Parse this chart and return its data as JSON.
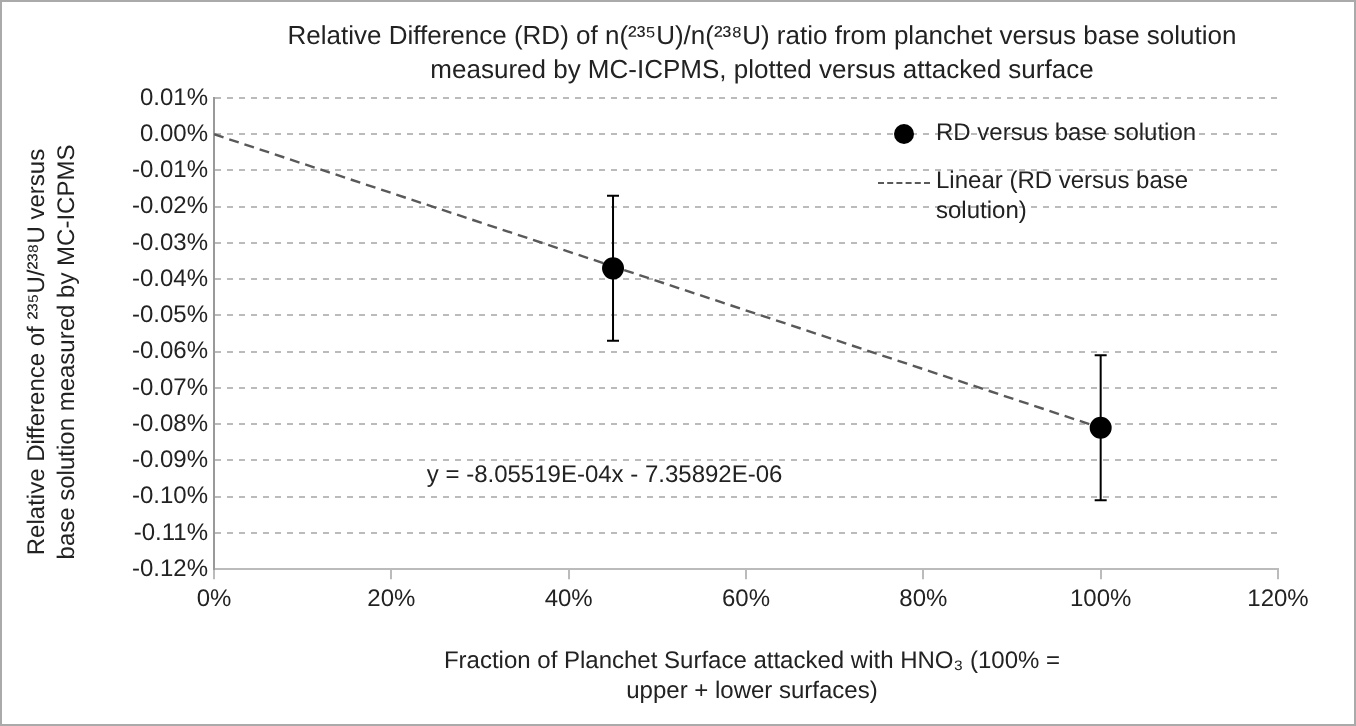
{
  "chart_data": {
    "type": "scatter",
    "title": "Relative Difference (RD) of n(²³⁵U)/n(²³⁸U) ratio from planchet versus base solution measured by MC-ICPMS, plotted versus attacked surface",
    "xlabel": "Fraction  of Planchet Surface attacked with HNO₃ (100% = upper + lower surfaces)",
    "ylabel": "Relative Difference of ²³⁵U/²³⁸U versus base solution measured by MC-ICPMS",
    "xlim": [
      0,
      120
    ],
    "xticks": [
      {
        "value": 0,
        "label": "0%"
      },
      {
        "value": 20,
        "label": "20%"
      },
      {
        "value": 40,
        "label": "40%"
      },
      {
        "value": 60,
        "label": "60%"
      },
      {
        "value": 80,
        "label": "80%"
      },
      {
        "value": 100,
        "label": "100%"
      },
      {
        "value": 120,
        "label": "120%"
      }
    ],
    "ylim": [
      -0.12,
      0.01
    ],
    "yticks": [
      {
        "value": 0.01,
        "label": "0.01%"
      },
      {
        "value": 0,
        "label": "0.00%"
      },
      {
        "value": -0.01,
        "label": "-0.01%"
      },
      {
        "value": -0.02,
        "label": "-0.02%"
      },
      {
        "value": -0.03,
        "label": "-0.03%"
      },
      {
        "value": -0.04,
        "label": "-0.04%"
      },
      {
        "value": -0.05,
        "label": "-0.05%"
      },
      {
        "value": -0.06,
        "label": "-0.06%"
      },
      {
        "value": -0.07,
        "label": "-0.07%"
      },
      {
        "value": -0.08,
        "label": "-0.08%"
      },
      {
        "value": -0.09,
        "label": "-0.09%"
      },
      {
        "value": -0.1,
        "label": "-0.10%"
      },
      {
        "value": -0.11,
        "label": "-0.11%"
      },
      {
        "value": -0.12,
        "label": "-0.12%"
      }
    ],
    "grid": "y",
    "legend": "top right",
    "annotations": [
      "y = -8.05519E-04x - 7.35892E-06"
    ],
    "series": [
      {
        "name": "RD versus base solution",
        "color": "#000000",
        "marker": "circle",
        "x": [
          45,
          100
        ],
        "values": [
          -0.037,
          -0.081
        ],
        "errors": [
          0.02,
          0.02
        ]
      },
      {
        "name": "Linear (RD versus base solution)",
        "type": "line",
        "color": "#595959",
        "marker": "none",
        "line_style": "dashed",
        "x": [
          0,
          100
        ],
        "values": [
          0,
          -0.081
        ]
      }
    ]
  }
}
